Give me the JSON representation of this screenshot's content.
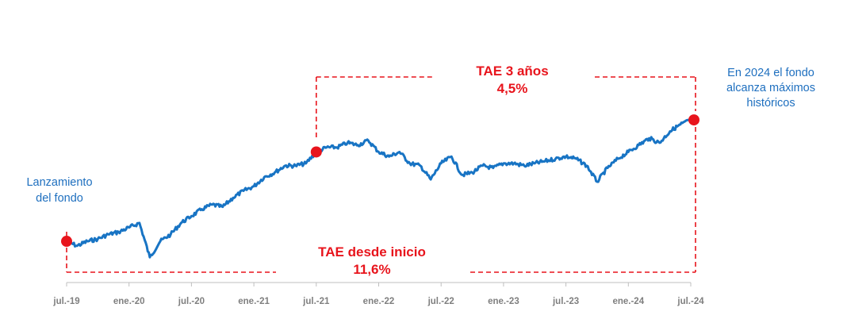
{
  "chart_data": {
    "type": "line",
    "title": "",
    "xlabel": "",
    "ylabel": "",
    "grid": false,
    "x_ticks": [
      "jul.-19",
      "ene.-20",
      "jul.-20",
      "ene.-21",
      "jul.-21",
      "ene.-22",
      "jul.-22",
      "ene.-23",
      "jul.-23",
      "ene.-24",
      "jul.-24"
    ],
    "x_range": [
      "2019-07",
      "2024-07"
    ],
    "y_range": [
      91,
      161
    ],
    "series": [
      {
        "name": "",
        "color": "#1874c4",
        "points": [
          [
            "2019-07",
            100
          ],
          [
            "2019-08",
            98
          ],
          [
            "2019-09",
            100
          ],
          [
            "2019-10",
            101
          ],
          [
            "2019-11",
            103
          ],
          [
            "2019-12",
            104
          ],
          [
            "2020-01",
            106
          ],
          [
            "2020-02",
            108
          ],
          [
            "2020-03",
            93
          ],
          [
            "2020-04",
            100
          ],
          [
            "2020-05",
            103
          ],
          [
            "2020-06",
            108
          ],
          [
            "2020-07",
            111
          ],
          [
            "2020-08",
            114
          ],
          [
            "2020-09",
            116
          ],
          [
            "2020-10",
            115
          ],
          [
            "2020-11",
            119
          ],
          [
            "2020-12",
            122
          ],
          [
            "2021-01",
            124
          ],
          [
            "2021-02",
            128
          ],
          [
            "2021-03",
            130
          ],
          [
            "2021-04",
            133
          ],
          [
            "2021-05",
            133
          ],
          [
            "2021-06",
            134
          ],
          [
            "2021-07",
            139
          ],
          [
            "2021-08",
            141
          ],
          [
            "2021-09",
            141
          ],
          [
            "2021-10",
            143
          ],
          [
            "2021-11",
            142
          ],
          [
            "2021-12",
            144
          ],
          [
            "2022-01",
            139
          ],
          [
            "2022-02",
            137
          ],
          [
            "2022-03",
            139
          ],
          [
            "2022-04",
            134
          ],
          [
            "2022-05",
            133
          ],
          [
            "2022-06",
            127
          ],
          [
            "2022-07",
            134
          ],
          [
            "2022-08",
            137
          ],
          [
            "2022-09",
            129
          ],
          [
            "2022-10",
            130
          ],
          [
            "2022-11",
            133
          ],
          [
            "2022-12",
            132
          ],
          [
            "2023-01",
            134
          ],
          [
            "2023-02",
            134
          ],
          [
            "2023-03",
            133
          ],
          [
            "2023-04",
            134
          ],
          [
            "2023-05",
            135
          ],
          [
            "2023-06",
            136
          ],
          [
            "2023-07",
            137
          ],
          [
            "2023-08",
            136
          ],
          [
            "2023-09",
            133
          ],
          [
            "2023-10",
            126
          ],
          [
            "2023-11",
            132
          ],
          [
            "2023-12",
            136
          ],
          [
            "2024-01",
            139
          ],
          [
            "2024-02",
            142
          ],
          [
            "2024-03",
            145
          ],
          [
            "2024-04",
            143
          ],
          [
            "2024-05",
            148
          ],
          [
            "2024-06",
            151
          ],
          [
            "2024-07",
            153
          ]
        ]
      }
    ],
    "markers": [
      {
        "date": "2019-07",
        "value": 100,
        "color": "#e8141c"
      },
      {
        "date": "2021-07",
        "value": 139,
        "color": "#e8141c"
      },
      {
        "date": "2024-07",
        "value": 153,
        "color": "#e8141c"
      }
    ],
    "annotations": {
      "launch": [
        "Lanzamiento",
        "del fondo"
      ],
      "highs": [
        "En 2024 el fondo",
        "alcanza máximos",
        "históricos"
      ],
      "tae_3y": {
        "title": "TAE 3 años",
        "value": "4,5%",
        "from": "2021-07",
        "to": "2024-07"
      },
      "tae_inception": {
        "title": "TAE desde inicio",
        "value": "11,6%",
        "from": "2019-07",
        "to": "2024-07"
      }
    },
    "colors": {
      "line": "#1874c4",
      "accent": "#e8141c",
      "annotation_blue": "#1e6fbf",
      "axis": "#bfbfbf",
      "tick_text": "#7f7f7f"
    }
  }
}
